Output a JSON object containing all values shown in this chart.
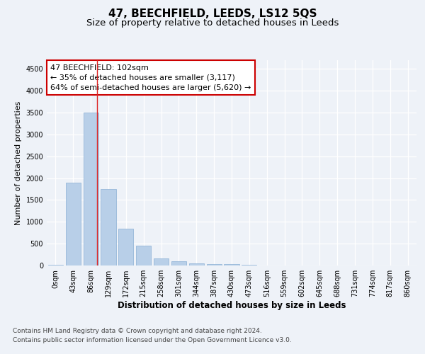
{
  "title": "47, BEECHFIELD, LEEDS, LS12 5QS",
  "subtitle": "Size of property relative to detached houses in Leeds",
  "xlabel": "Distribution of detached houses by size in Leeds",
  "ylabel": "Number of detached properties",
  "bar_labels": [
    "0sqm",
    "43sqm",
    "86sqm",
    "129sqm",
    "172sqm",
    "215sqm",
    "258sqm",
    "301sqm",
    "344sqm",
    "387sqm",
    "430sqm",
    "473sqm",
    "516sqm",
    "559sqm",
    "602sqm",
    "645sqm",
    "688sqm",
    "731sqm",
    "774sqm",
    "817sqm",
    "860sqm"
  ],
  "bar_values": [
    20,
    1900,
    3500,
    1750,
    850,
    450,
    155,
    95,
    55,
    40,
    30,
    10,
    0,
    0,
    0,
    0,
    0,
    0,
    0,
    0,
    0
  ],
  "bar_color": "#b8cfe8",
  "bar_edgecolor": "#8aaed4",
  "vline_x": 2.35,
  "vline_color": "#dd2222",
  "annotation_text": "47 BEECHFIELD: 102sqm\n← 35% of detached houses are smaller (3,117)\n64% of semi-detached houses are larger (5,620) →",
  "annotation_box_edgecolor": "#cc0000",
  "ylim": [
    0,
    4700
  ],
  "yticks": [
    0,
    500,
    1000,
    1500,
    2000,
    2500,
    3000,
    3500,
    4000,
    4500
  ],
  "footer_line1": "Contains HM Land Registry data © Crown copyright and database right 2024.",
  "footer_line2": "Contains public sector information licensed under the Open Government Licence v3.0.",
  "bg_color": "#eef2f8",
  "plot_bg_color": "#eef2f8",
  "title_fontsize": 11,
  "subtitle_fontsize": 9.5,
  "xlabel_fontsize": 8.5,
  "ylabel_fontsize": 8,
  "tick_fontsize": 7,
  "annotation_fontsize": 8,
  "footer_fontsize": 6.5
}
